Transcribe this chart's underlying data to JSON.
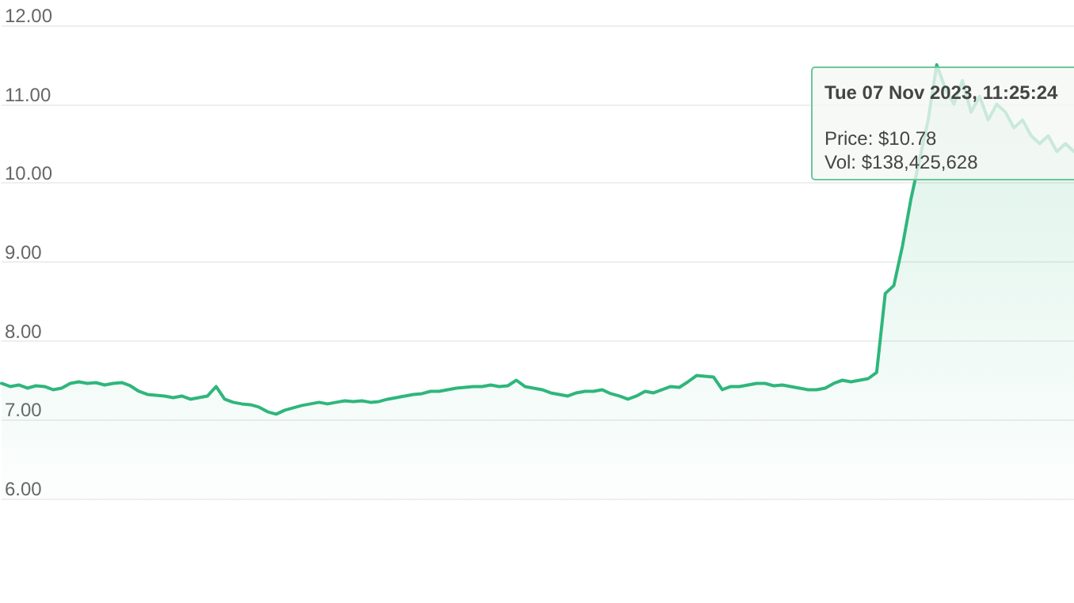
{
  "chart_data": {
    "type": "area",
    "categories": [
      null,
      null,
      null,
      null,
      null,
      null,
      null,
      null,
      null,
      null,
      null,
      null,
      null,
      null,
      null,
      null,
      null,
      null,
      null,
      null,
      null,
      null,
      null,
      null,
      null,
      null,
      null,
      null,
      null,
      null,
      null,
      null,
      null,
      null,
      null,
      null,
      null,
      null,
      null,
      null,
      null,
      null,
      null,
      null,
      null,
      null,
      null,
      null,
      null,
      null,
      null,
      null,
      null,
      null,
      null,
      null,
      null,
      null,
      null,
      null,
      null,
      null,
      null,
      null,
      null,
      null,
      null,
      null,
      null,
      null,
      null,
      null,
      null,
      null,
      null,
      null,
      null,
      null,
      null,
      null,
      null,
      null,
      null,
      null,
      null,
      null,
      null,
      null,
      null,
      null,
      null,
      null,
      null,
      null,
      null,
      null,
      null,
      null,
      null,
      null,
      null,
      null,
      null,
      null,
      null,
      null,
      null,
      null,
      null,
      null,
      null,
      null,
      null,
      null,
      null,
      null,
      null,
      null,
      null,
      null,
      null,
      null,
      null,
      null,
      null,
      null
    ],
    "series": [
      {
        "color": "#2fb67c",
        "values": [
          7.46,
          7.42,
          7.44,
          7.4,
          7.43,
          7.42,
          7.38,
          7.4,
          7.46,
          7.48,
          7.46,
          7.47,
          7.44,
          7.46,
          7.47,
          7.43,
          7.36,
          7.32,
          7.31,
          7.3,
          7.28,
          7.3,
          7.26,
          7.28,
          7.3,
          7.42,
          7.26,
          7.22,
          7.2,
          7.19,
          7.16,
          7.1,
          7.07,
          7.12,
          7.15,
          7.18,
          7.2,
          7.22,
          7.2,
          7.22,
          7.24,
          7.23,
          7.24,
          7.22,
          7.23,
          7.26,
          7.28,
          7.3,
          7.32,
          7.33,
          7.36,
          7.36,
          7.38,
          7.4,
          7.41,
          7.42,
          7.42,
          7.44,
          7.42,
          7.43,
          7.5,
          7.42,
          7.4,
          7.38,
          7.34,
          7.32,
          7.3,
          7.34,
          7.36,
          7.36,
          7.38,
          7.33,
          7.3,
          7.26,
          7.3,
          7.36,
          7.34,
          7.38,
          7.42,
          7.41,
          7.48,
          7.56,
          7.55,
          7.54,
          7.38,
          7.42,
          7.42,
          7.44,
          7.46,
          7.46,
          7.43,
          7.44,
          7.42,
          7.4,
          7.38,
          7.38,
          7.4,
          7.46,
          7.5,
          7.48,
          7.5,
          7.52,
          7.6,
          8.6,
          8.7,
          9.2,
          9.8,
          10.3,
          10.8,
          11.5,
          11.2,
          11.0,
          11.3,
          10.9,
          11.1,
          10.8,
          11.0,
          10.9,
          10.7,
          10.8,
          10.6,
          10.5,
          10.6,
          10.4,
          10.5,
          10.4
        ]
      }
    ],
    "ylim": [
      6,
      12
    ],
    "yticks": [
      {
        "value": 6,
        "label": "6.00"
      },
      {
        "value": 7,
        "label": "7.00"
      },
      {
        "value": 8,
        "label": "8.00"
      },
      {
        "value": 9,
        "label": "9.00"
      },
      {
        "value": 10,
        "label": "10.00"
      },
      {
        "value": 11,
        "label": "11.00"
      },
      {
        "value": 12,
        "label": "12.00"
      }
    ],
    "tick_labels": "y",
    "grid": "y",
    "line_style": "solid",
    "annotations": [
      "Tue 07 Nov 2023, 11:25:24",
      "Price: $10.78",
      "Vol: $138,425,628"
    ]
  }
}
